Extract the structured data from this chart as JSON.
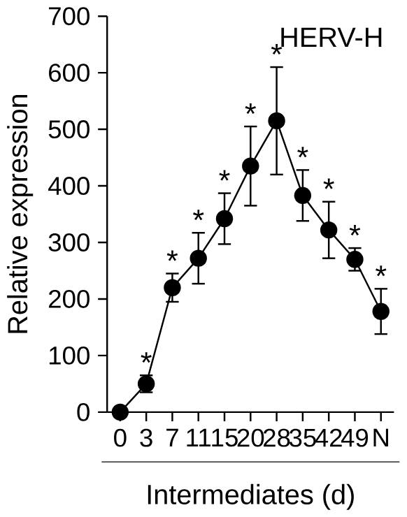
{
  "chart_data": {
    "type": "line",
    "title": "HERV-H",
    "xlabel": "Intermediates (d)",
    "ylabel": "Relative expression",
    "categories": [
      "0",
      "3",
      "7",
      "11",
      "15",
      "20",
      "28",
      "35",
      "42",
      "49",
      "N"
    ],
    "series": [
      {
        "color": "#000000",
        "values": [
          0,
          50,
          220,
          272,
          342,
          435,
          515,
          383,
          322,
          270,
          178
        ],
        "errors": [
          null,
          15,
          25,
          45,
          45,
          70,
          95,
          45,
          50,
          20,
          40
        ]
      }
    ],
    "ylim": [
      0,
      700
    ],
    "yticks": [
      0,
      100,
      200,
      300,
      400,
      500,
      600,
      700
    ],
    "marker": "circle",
    "line_style": "solid",
    "grid": false,
    "annotations": [
      "*",
      "*",
      "*",
      "*",
      "*",
      "*",
      "*",
      "*",
      "*",
      "*"
    ]
  }
}
